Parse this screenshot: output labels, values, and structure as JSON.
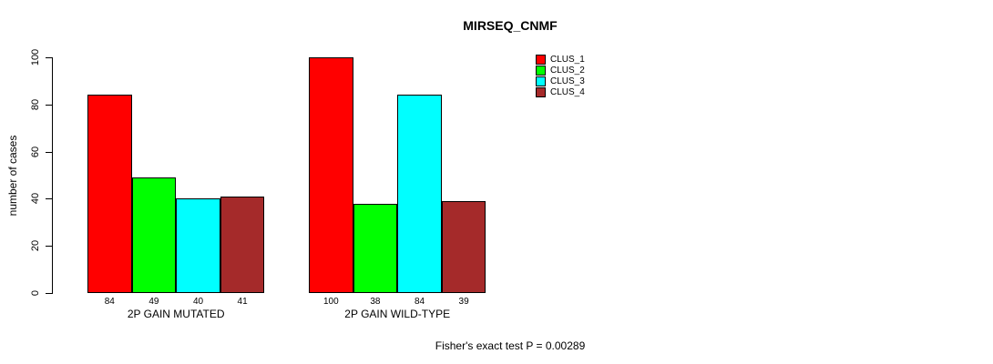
{
  "chart_data": {
    "type": "bar",
    "title": "MIRSEQ_CNMF",
    "ylabel": "number of cases",
    "xlabel": "",
    "ylim": [
      0,
      100
    ],
    "yticks": [
      0,
      20,
      40,
      60,
      80,
      100
    ],
    "grid": false,
    "legend_position": "right-outside",
    "categories": [
      "2P GAIN MUTATED",
      "2P GAIN WILD-TYPE"
    ],
    "series": [
      {
        "name": "CLUS_1",
        "color": "#FF0000",
        "values": [
          84,
          100
        ]
      },
      {
        "name": "CLUS_2",
        "color": "#00FF00",
        "values": [
          49,
          38
        ]
      },
      {
        "name": "CLUS_3",
        "color": "#00FFFF",
        "values": [
          40,
          84
        ]
      },
      {
        "name": "CLUS_4",
        "color": "#A52A2A",
        "values": [
          41,
          39
        ]
      }
    ],
    "bar_value_labels": [
      [
        "84",
        "49",
        "40",
        "41"
      ],
      [
        "100",
        "38",
        "84",
        "39"
      ]
    ],
    "footer": "Fisher's exact test P = 0.00289"
  }
}
